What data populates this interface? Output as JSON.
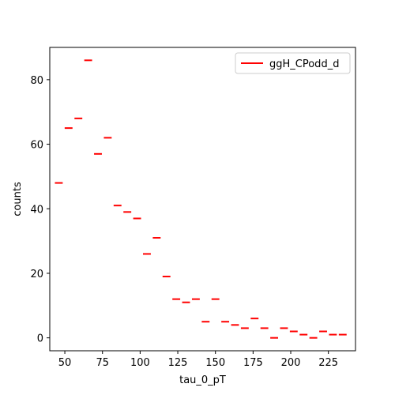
{
  "chart_data": {
    "type": "scatter",
    "marker": "hline",
    "xlabel": "tau_0_pT",
    "ylabel": "counts",
    "xlim": [
      40,
      243
    ],
    "ylim": [
      -4,
      90
    ],
    "xticks": [
      50,
      75,
      100,
      125,
      150,
      175,
      200,
      225
    ],
    "yticks": [
      0,
      20,
      40,
      60,
      80
    ],
    "grid": false,
    "legend_position": "top-right",
    "bin_width": 6.5,
    "series": [
      {
        "name": "ggH_CPodd_d",
        "color": "#ff0000",
        "x": [
          46,
          52.5,
          59,
          65.5,
          72,
          78.5,
          85,
          91.5,
          98,
          104.5,
          111,
          117.5,
          124,
          130.5,
          137,
          143.5,
          150,
          156.5,
          163,
          169.5,
          176,
          182.5,
          189,
          195.5,
          202,
          208.5,
          215,
          221.5,
          228,
          234.5
        ],
        "y": [
          48,
          65,
          68,
          86,
          57,
          62,
          41,
          39,
          37,
          26,
          31,
          19,
          12,
          11,
          12,
          5,
          12,
          5,
          4,
          3,
          6,
          3,
          0,
          3,
          2,
          1,
          0,
          2,
          1,
          1
        ]
      }
    ]
  }
}
